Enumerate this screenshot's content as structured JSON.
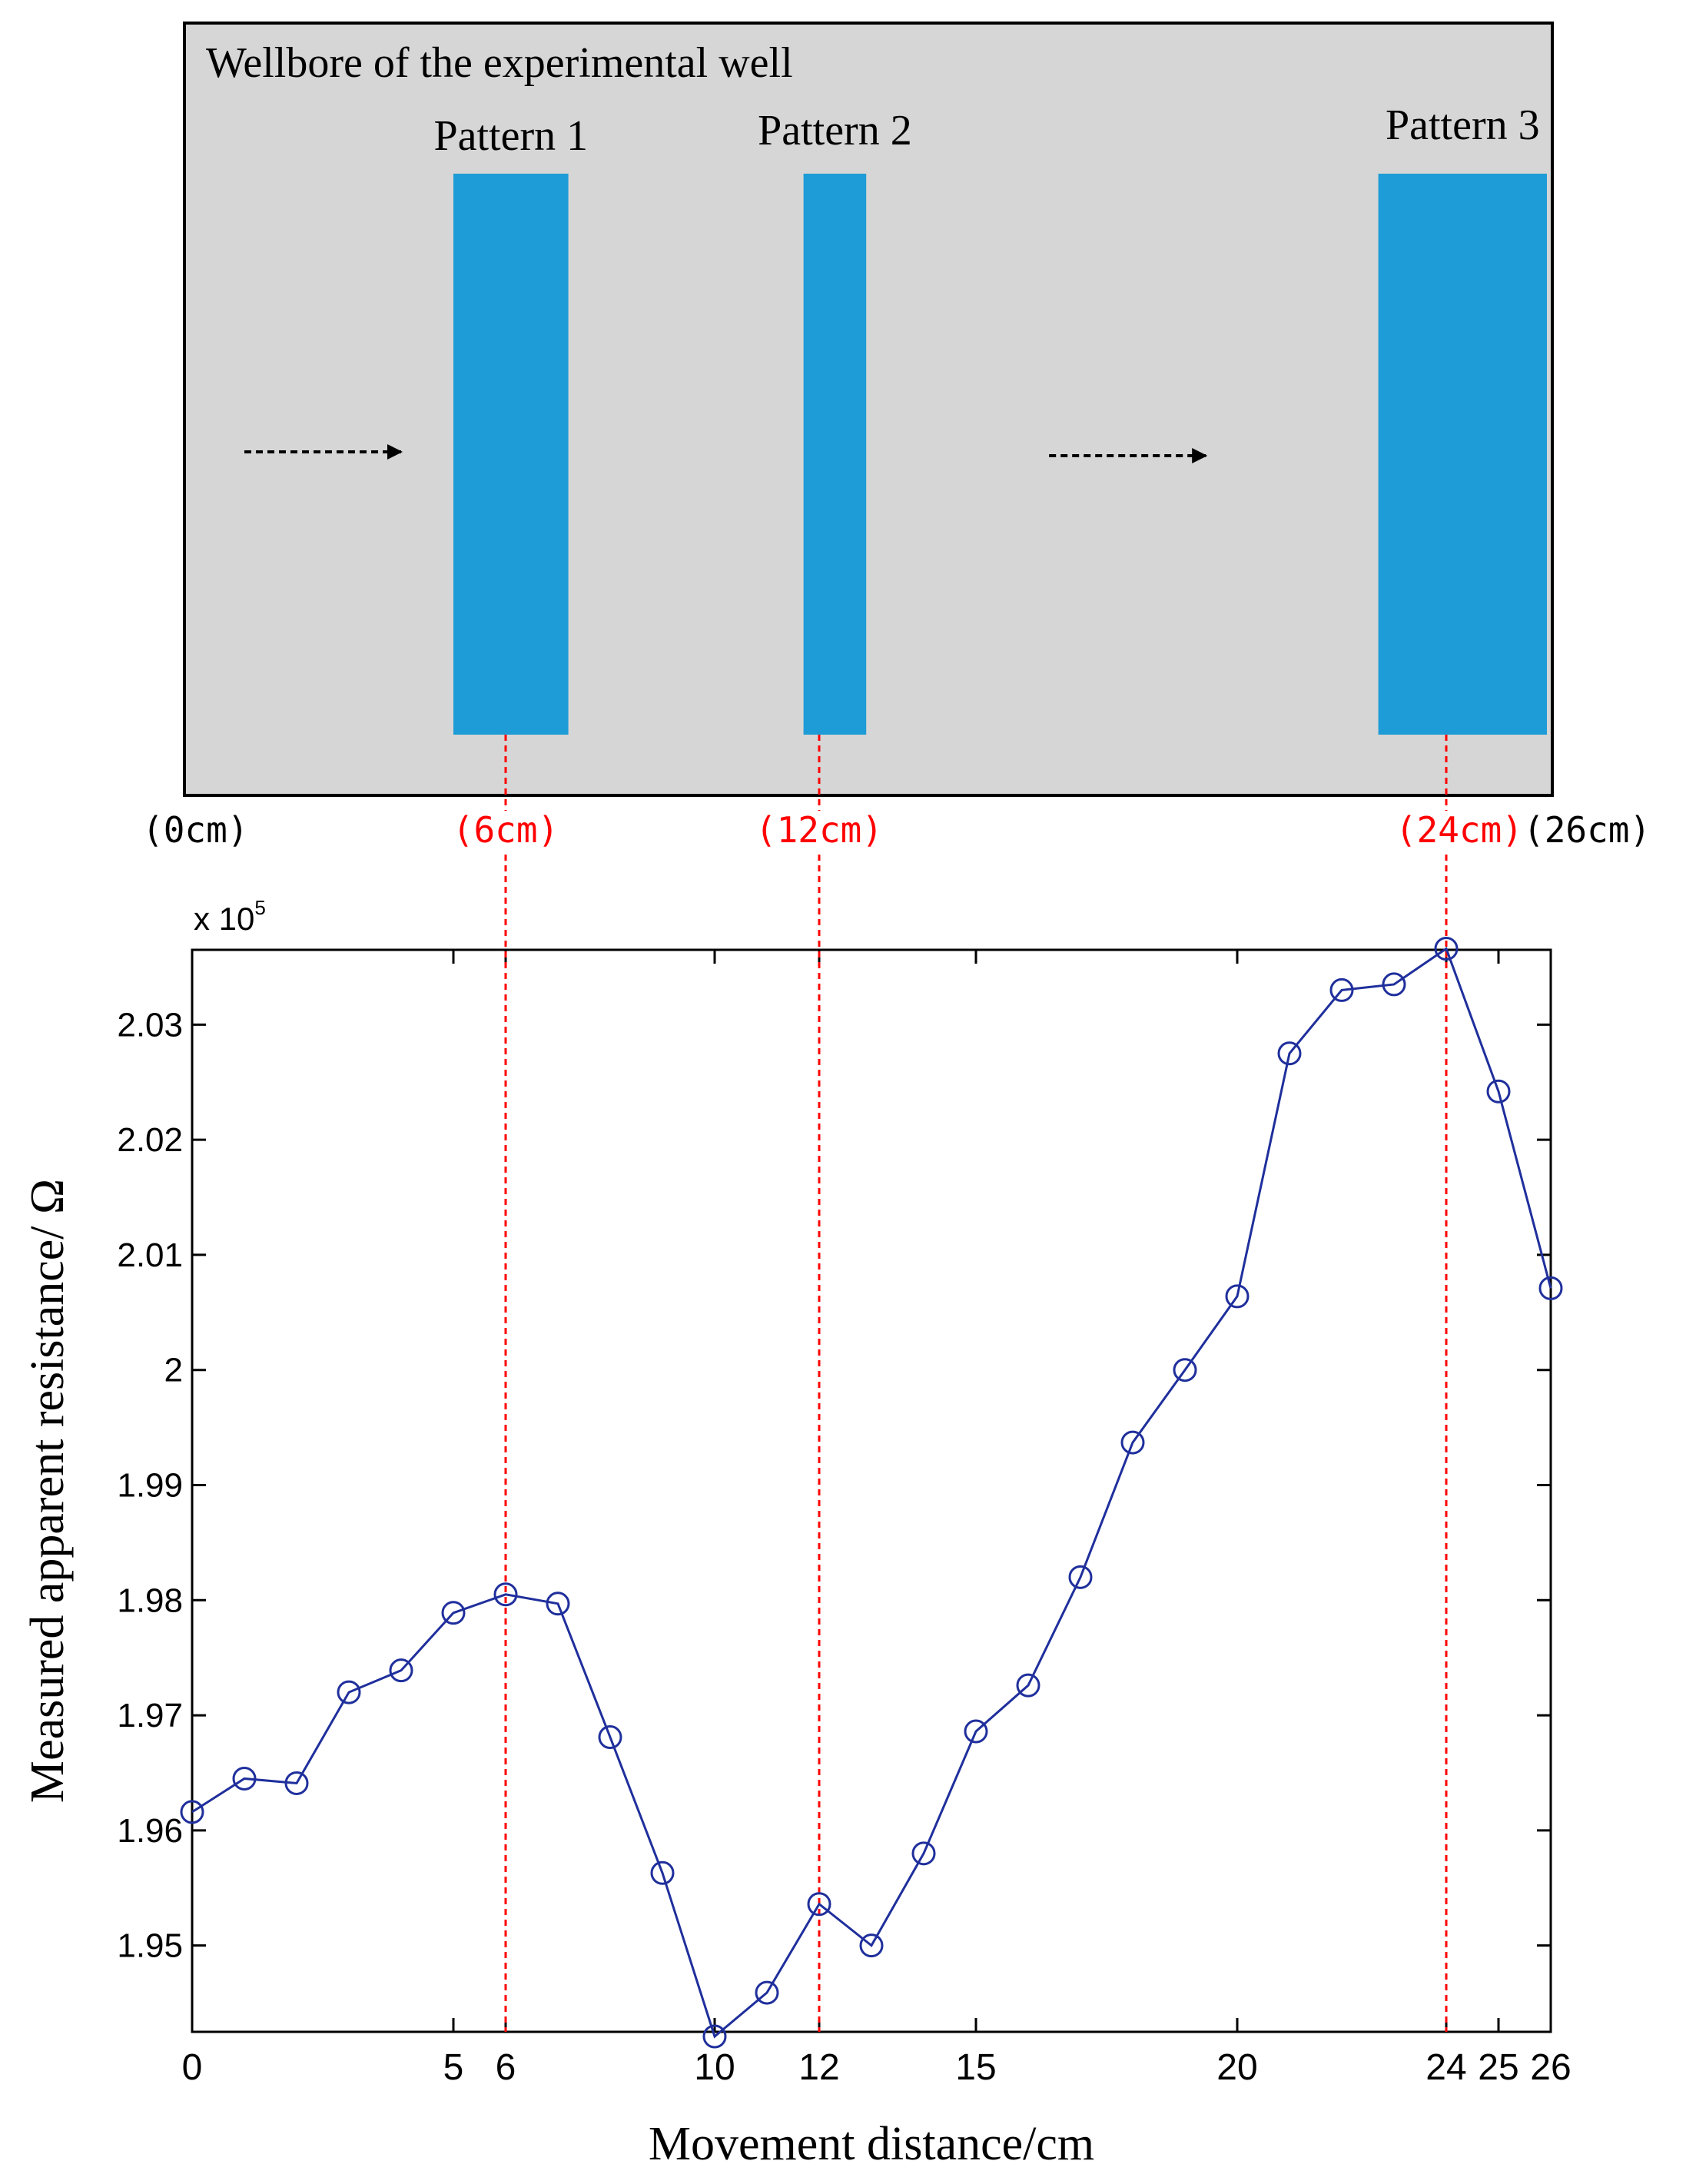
{
  "colors": {
    "wellbore_fill": "#d6d6d6",
    "pattern_fill": "#1e9cd7",
    "series_line": "#1f2f9c",
    "guide_line": "#ff0000",
    "position_label_red": "#ff0000",
    "position_label_black": "#000000",
    "axis": "#000000"
  },
  "diagram": {
    "title": "Wellbore of the experimental well",
    "patterns": [
      {
        "label": "Pattern 1",
        "start_cm": 5,
        "end_cm": 7.2
      },
      {
        "label": "Pattern 2",
        "start_cm": 11.7,
        "end_cm": 12.9
      },
      {
        "label": "Pattern 3",
        "start_cm": 22.7,
        "end_cm": 26.8
      }
    ],
    "arrows": [
      {
        "name": "arrow-right-icon",
        "from_cm": 1,
        "to_cm": 4
      },
      {
        "name": "arrow-right-icon",
        "from_cm": 16.4,
        "to_cm": 19.4
      }
    ],
    "position_labels": [
      {
        "text": "(0cm)",
        "cm": 0,
        "color": "black"
      },
      {
        "text": "(6cm)",
        "cm": 6,
        "color": "red"
      },
      {
        "text": "(12cm)",
        "cm": 12,
        "color": "red"
      },
      {
        "text": "(24cm)",
        "cm": 24,
        "color": "red"
      },
      {
        "text": "(26cm)",
        "cm": 26,
        "color": "black"
      }
    ]
  },
  "chart_data": {
    "type": "line",
    "title": "",
    "xlabel": "Movement distance/cm",
    "ylabel": "Measured apparent resistance/ Ω",
    "scale_label": "x 10",
    "scale_exponent": "5",
    "xlim": [
      0,
      26
    ],
    "ylim": [
      1.9425,
      2.0365
    ],
    "x_ticks": [
      {
        "value": 0,
        "label": "0"
      },
      {
        "value": 5,
        "label": "5"
      },
      {
        "value": 6,
        "label": "6"
      },
      {
        "value": 10,
        "label": "10"
      },
      {
        "value": 12,
        "label": "12"
      },
      {
        "value": 15,
        "label": "15"
      },
      {
        "value": 20,
        "label": "20"
      },
      {
        "value": 24,
        "label": "24"
      },
      {
        "value": 25,
        "label": "25"
      },
      {
        "value": 26,
        "label": "26"
      }
    ],
    "y_ticks": [
      {
        "value": 1.95,
        "label": "1.95"
      },
      {
        "value": 1.96,
        "label": "1.96"
      },
      {
        "value": 1.97,
        "label": "1.97"
      },
      {
        "value": 1.98,
        "label": "1.98"
      },
      {
        "value": 1.99,
        "label": "1.99"
      },
      {
        "value": 2.0,
        "label": "2"
      },
      {
        "value": 2.01,
        "label": "2.01"
      },
      {
        "value": 2.02,
        "label": "2.02"
      },
      {
        "value": 2.03,
        "label": "2.03"
      }
    ],
    "guide_lines_x": [
      6,
      12,
      24
    ],
    "series": [
      {
        "name": "Measured apparent resistance",
        "marker": "circle",
        "x": [
          0,
          1,
          2,
          3,
          4,
          5,
          6,
          7,
          8,
          9,
          10,
          11,
          12,
          13,
          14,
          15,
          16,
          17,
          18,
          19,
          20,
          21,
          22,
          23,
          24,
          25,
          26
        ],
        "values": [
          1.9616,
          1.9645,
          1.9641,
          1.972,
          1.9739,
          1.9789,
          1.9805,
          1.9797,
          1.9681,
          1.9563,
          1.9421,
          1.9459,
          1.9536,
          1.95,
          1.958,
          1.9686,
          1.9726,
          1.982,
          1.9937,
          2.0,
          2.0064,
          2.0275,
          2.033,
          2.0335,
          2.0366,
          2.0242,
          2.0071
        ]
      }
    ]
  }
}
